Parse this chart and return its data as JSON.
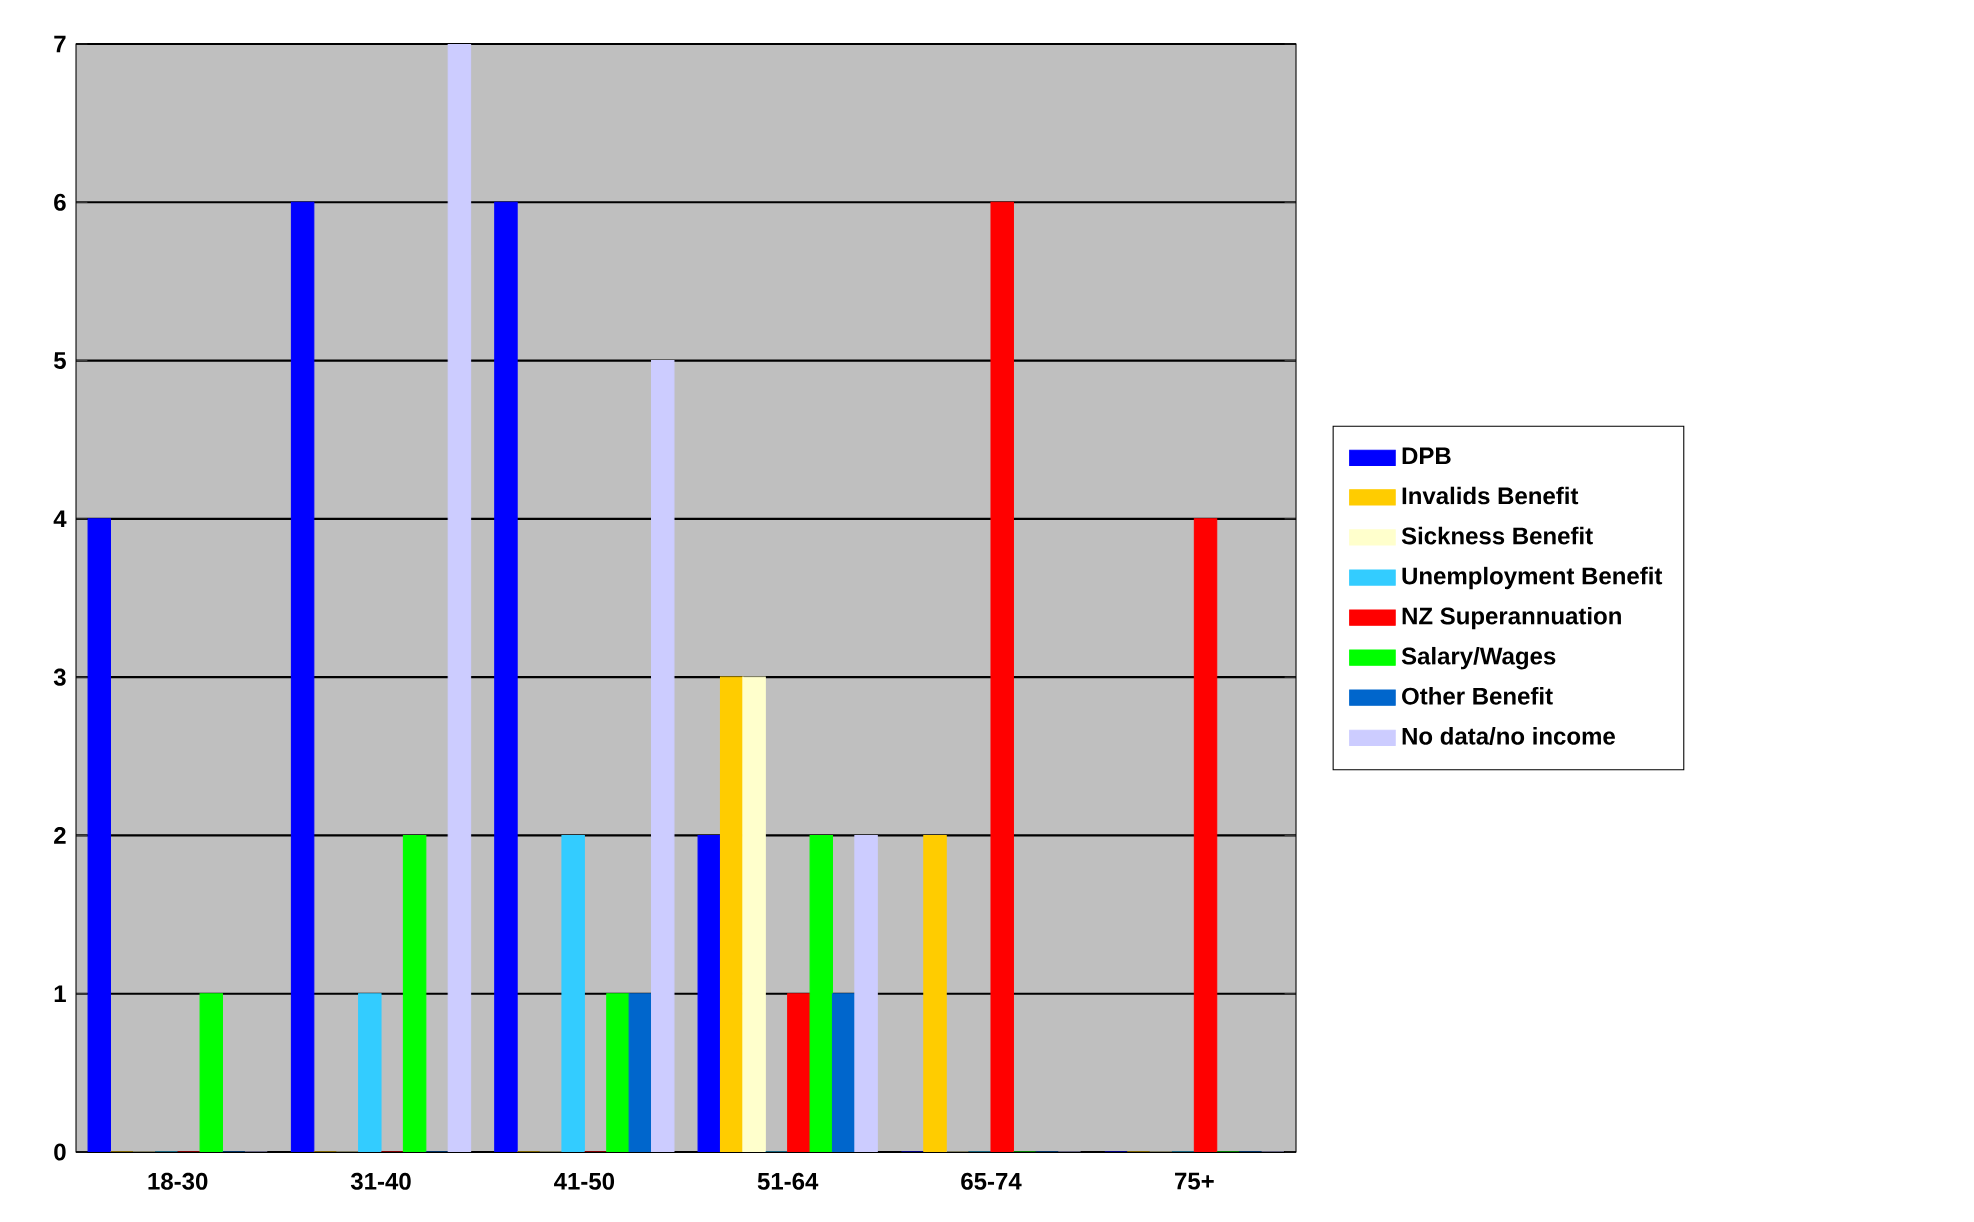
{
  "chart_data": {
    "type": "bar",
    "categories": [
      "18-30",
      "31-40",
      "41-50",
      "51-64",
      "65-74",
      "75+"
    ],
    "series": [
      {
        "name": "DPB",
        "color": "#0000ff",
        "values": [
          4,
          6,
          6,
          2,
          0,
          0
        ]
      },
      {
        "name": "Invalids Benefit",
        "color": "#ffcc00",
        "values": [
          0,
          0,
          0,
          3,
          2,
          0
        ]
      },
      {
        "name": "Sickness Benefit",
        "color": "#ffffcc",
        "values": [
          0,
          0,
          0,
          3,
          0,
          0
        ]
      },
      {
        "name": "Unemployment Benefit",
        "color": "#33ccff",
        "values": [
          0,
          1,
          2,
          0,
          0,
          0
        ]
      },
      {
        "name": "NZ Superannuation",
        "color": "#ff0000",
        "values": [
          0,
          0,
          0,
          1,
          6,
          4
        ]
      },
      {
        "name": "Salary/Wages",
        "color": "#00ff00",
        "values": [
          1,
          2,
          1,
          2,
          0,
          0
        ]
      },
      {
        "name": "Other Benefit",
        "color": "#0066cc",
        "values": [
          0,
          0,
          1,
          1,
          0,
          0
        ]
      },
      {
        "name": "No data/no income",
        "color": "#ccccff",
        "values": [
          0,
          7,
          5,
          2,
          0,
          0
        ]
      }
    ],
    "ylim": [
      0,
      7
    ],
    "yticks": [
      0,
      1,
      2,
      3,
      4,
      5,
      6,
      7
    ],
    "grid": "y",
    "legend": "right"
  }
}
